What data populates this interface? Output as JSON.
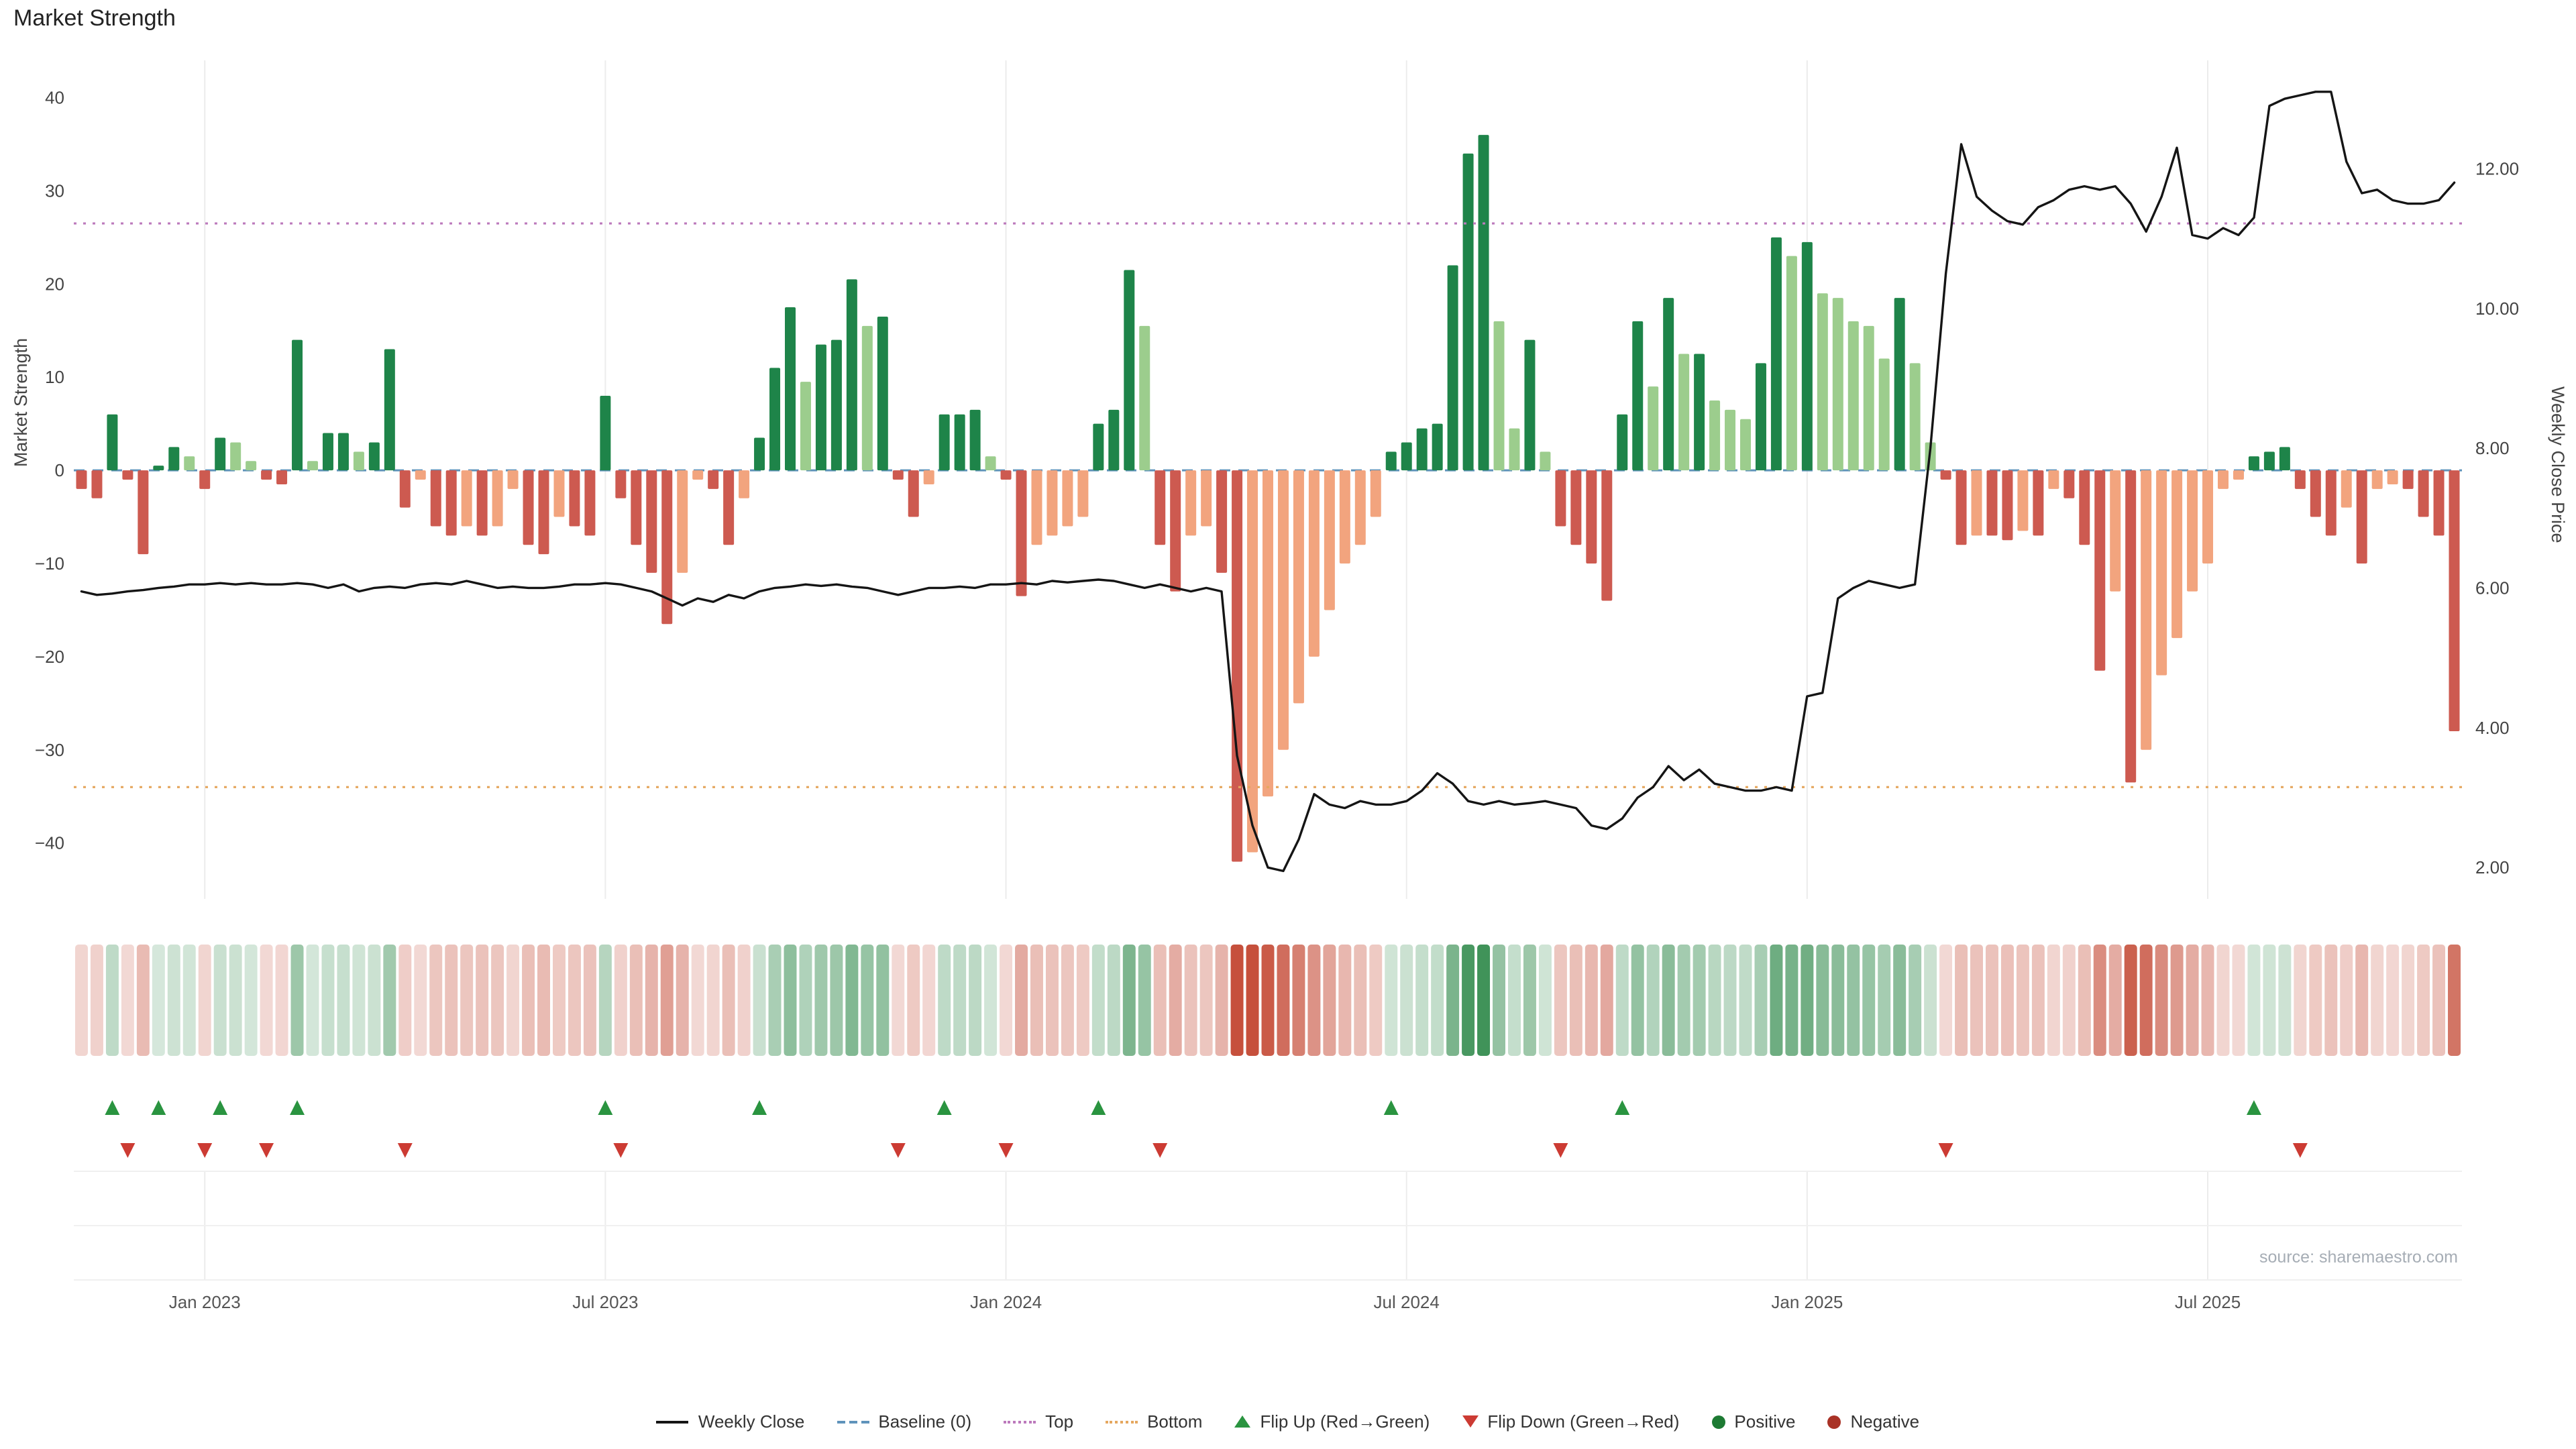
{
  "title": "Market Strength",
  "source": "source: sharemaestro.com",
  "colors": {
    "positive_dark": "#1e8449",
    "positive_light": "#9ccd8d",
    "negative_dark": "#cd5a50",
    "negative_light": "#f2a47e",
    "line": "#151515",
    "baseline": "#5f93bb",
    "top": "#bc7abc",
    "bottom": "#e5a75f",
    "flip_up": "#2a9440",
    "flip_down": "#cc3b33",
    "heat_positive": "#388e52",
    "heat_negative": "#c6503c",
    "grid": "#ececec"
  },
  "legend": [
    {
      "label": "Weekly Close",
      "swatch": "sw-line"
    },
    {
      "label": "Baseline (0)",
      "swatch": "sw-dash-blue"
    },
    {
      "label": "Top",
      "swatch": "sw-dot-purple"
    },
    {
      "label": "Bottom",
      "swatch": "sw-dot-orange"
    },
    {
      "label": "Flip Up (Red→Green)",
      "swatch": "sw-tri-up"
    },
    {
      "label": "Flip Down (Green→Red)",
      "swatch": "sw-tri-down"
    },
    {
      "label": "Positive",
      "swatch": "sw-dot-green"
    },
    {
      "label": "Negative",
      "swatch": "sw-dot-red"
    }
  ],
  "chart_data": {
    "type": "bar+line",
    "x_unit": "week",
    "n_weeks": 155,
    "title": "Market Strength",
    "x_ticks": [
      {
        "index": 8,
        "label": "Jan 2023"
      },
      {
        "index": 34,
        "label": "Jul 2023"
      },
      {
        "index": 60,
        "label": "Jan 2024"
      },
      {
        "index": 86,
        "label": "Jul 2024"
      },
      {
        "index": 112,
        "label": "Jan 2025"
      },
      {
        "index": 138,
        "label": "Jul 2025"
      }
    ],
    "left_axis": {
      "label": "Market Strength",
      "tick_labels": [
        "40",
        "30",
        "20",
        "10",
        "0",
        "−10",
        "−20",
        "−30",
        "−40"
      ],
      "tick_values": [
        40,
        30,
        20,
        10,
        0,
        -10,
        -20,
        -30,
        -40
      ],
      "range": [
        -46,
        44
      ]
    },
    "right_axis": {
      "label": "Weekly Close Price",
      "tick_labels": [
        "12.00",
        "10.00",
        "8.00",
        "6.00",
        "4.00",
        "2.00"
      ],
      "tick_values": [
        12,
        10,
        8,
        6,
        4,
        2
      ],
      "range": [
        1.55,
        13.55
      ]
    },
    "reference_lines": {
      "baseline": 0,
      "top": 26.5,
      "bottom": -34
    },
    "bar_series": {
      "name": "Market Strength",
      "axis": "left",
      "values": [
        -2,
        -3,
        6,
        -1,
        -9,
        0.5,
        2.5,
        1.5,
        -2,
        3.5,
        3,
        1,
        -1,
        -1.5,
        14,
        1,
        4,
        4,
        2,
        3,
        13,
        -4,
        -1,
        -6,
        -7,
        -6,
        -7,
        -6,
        -2,
        -8,
        -9,
        -5,
        -6,
        -7,
        8,
        -3,
        -8,
        -11,
        -16.5,
        -11,
        -1,
        -2,
        -8,
        -3,
        3.5,
        11,
        17.5,
        9.5,
        13.5,
        14,
        20.5,
        15.5,
        16.5,
        -1,
        -5,
        -1.5,
        6,
        6,
        6.5,
        1.5,
        -1,
        -13.5,
        -8,
        -7,
        -6,
        -5,
        5,
        6.5,
        21.5,
        15.5,
        -8,
        -13,
        -7,
        -6,
        -11,
        -42,
        -41,
        -35,
        -30,
        -25,
        -20,
        -15,
        -10,
        -8,
        -5,
        2,
        3,
        4.5,
        5,
        22,
        34,
        36,
        16,
        4.5,
        14,
        2,
        -6,
        -8,
        -10,
        -14,
        6,
        16,
        9,
        18.5,
        12.5,
        12.5,
        7.5,
        6.5,
        5.5,
        11.5,
        25,
        23,
        24.5,
        19,
        18.5,
        16,
        15.5,
        12,
        18.5,
        11.5,
        3,
        -1,
        -8,
        -7,
        -7,
        -7.5,
        -6.5,
        -7,
        -2,
        -3,
        -8,
        -21.5,
        -13,
        -33.5,
        -30,
        -22,
        -18,
        -13,
        -10,
        -2,
        -1,
        1.5,
        2,
        2.5,
        -2,
        -5,
        -7,
        -4,
        -10,
        -2,
        -1.5,
        -2,
        -5,
        -7,
        -28
      ]
    },
    "line_series": {
      "name": "Weekly Close",
      "axis": "right",
      "values": [
        5.95,
        5.9,
        5.92,
        5.95,
        5.97,
        6.0,
        6.02,
        6.05,
        6.05,
        6.07,
        6.05,
        6.07,
        6.05,
        6.05,
        6.07,
        6.05,
        6.0,
        6.05,
        5.95,
        6.0,
        6.02,
        6.0,
        6.05,
        6.07,
        6.05,
        6.1,
        6.05,
        6.0,
        6.02,
        6.0,
        6.0,
        6.02,
        6.05,
        6.05,
        6.07,
        6.05,
        6.0,
        5.95,
        5.85,
        5.75,
        5.85,
        5.8,
        5.9,
        5.85,
        5.95,
        6.0,
        6.02,
        6.05,
        6.03,
        6.05,
        6.02,
        6.0,
        5.95,
        5.9,
        5.95,
        6.0,
        6.0,
        6.02,
        6.0,
        6.05,
        6.05,
        6.07,
        6.05,
        6.1,
        6.08,
        6.1,
        6.12,
        6.1,
        6.05,
        6.0,
        6.05,
        6.0,
        5.95,
        6.0,
        5.95,
        3.6,
        2.6,
        2.0,
        1.95,
        2.4,
        3.05,
        2.9,
        2.85,
        2.95,
        2.9,
        2.9,
        2.95,
        3.1,
        3.35,
        3.2,
        2.95,
        2.9,
        2.95,
        2.9,
        2.92,
        2.95,
        2.9,
        2.85,
        2.6,
        2.55,
        2.7,
        3.0,
        3.15,
        3.45,
        3.25,
        3.4,
        3.2,
        3.15,
        3.1,
        3.1,
        3.15,
        3.1,
        4.45,
        4.5,
        5.85,
        6.0,
        6.1,
        6.05,
        6.0,
        6.05,
        8.0,
        10.5,
        12.35,
        11.6,
        11.4,
        11.25,
        11.2,
        11.45,
        11.55,
        11.7,
        11.75,
        11.7,
        11.75,
        11.5,
        11.1,
        11.6,
        12.3,
        11.05,
        11.0,
        11.15,
        11.05,
        11.3,
        12.9,
        13.0,
        13.05,
        13.1,
        13.1,
        12.1,
        11.65,
        11.7,
        11.55,
        11.5,
        11.5,
        11.55,
        11.8
      ]
    },
    "flip_up_weeks": [
      2,
      5,
      9,
      14,
      34,
      44,
      56,
      66,
      85,
      100,
      141
    ],
    "flip_down_weeks": [
      3,
      8,
      12,
      21,
      35,
      53,
      60,
      70,
      96,
      121,
      144
    ]
  }
}
